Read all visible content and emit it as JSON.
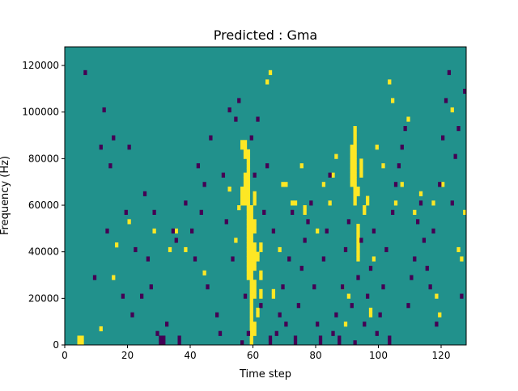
{
  "chart_data": {
    "type": "heatmap",
    "title": "Predicted : Gma",
    "xlabel": "Time step",
    "ylabel": "Frequency (Hz)",
    "xlim": [
      0,
      128
    ],
    "ylim": [
      0,
      128000
    ],
    "x_ticks": [
      0,
      20,
      40,
      60,
      80,
      100,
      120
    ],
    "x_tick_labels": [
      "0",
      "20",
      "40",
      "60",
      "80",
      "100",
      "120"
    ],
    "y_ticks": [
      0,
      20000,
      40000,
      60000,
      80000,
      100000,
      120000
    ],
    "y_tick_labels": [
      "0",
      "20000",
      "40000",
      "60000",
      "80000",
      "100000",
      "120000"
    ],
    "n_time_steps": 128,
    "n_freq_bins": 64,
    "freq_bin_hz": 2000,
    "colormap": {
      "low": "#440154",
      "mid": "#21918c",
      "high": "#fde725"
    },
    "background_value": "mid",
    "high_cells": [
      [
        5,
        0
      ],
      [
        5,
        1
      ],
      [
        4,
        0
      ],
      [
        4,
        1
      ],
      [
        11,
        3
      ],
      [
        15,
        14
      ],
      [
        16,
        21
      ],
      [
        20,
        26
      ],
      [
        28,
        24
      ],
      [
        33,
        20
      ],
      [
        35,
        24
      ],
      [
        38,
        20
      ],
      [
        44,
        15
      ],
      [
        52,
        33
      ],
      [
        54,
        22
      ],
      [
        55,
        29
      ],
      [
        56,
        30
      ],
      [
        56,
        31
      ],
      [
        56,
        32
      ],
      [
        56,
        33
      ],
      [
        56,
        42
      ],
      [
        56,
        43
      ],
      [
        57,
        30
      ],
      [
        57,
        31
      ],
      [
        57,
        32
      ],
      [
        57,
        33
      ],
      [
        57,
        34
      ],
      [
        57,
        35
      ],
      [
        57,
        36
      ],
      [
        57,
        40
      ],
      [
        57,
        41
      ],
      [
        57,
        42
      ],
      [
        57,
        43
      ],
      [
        58,
        14
      ],
      [
        58,
        15
      ],
      [
        58,
        16
      ],
      [
        58,
        17
      ],
      [
        58,
        18
      ],
      [
        58,
        19
      ],
      [
        58,
        20
      ],
      [
        58,
        21
      ],
      [
        58,
        22
      ],
      [
        58,
        23
      ],
      [
        58,
        24
      ],
      [
        58,
        25
      ],
      [
        58,
        26
      ],
      [
        58,
        27
      ],
      [
        58,
        28
      ],
      [
        58,
        29
      ],
      [
        58,
        30
      ],
      [
        58,
        31
      ],
      [
        58,
        32
      ],
      [
        58,
        33
      ],
      [
        58,
        34
      ],
      [
        58,
        35
      ],
      [
        58,
        36
      ],
      [
        58,
        37
      ],
      [
        58,
        38
      ],
      [
        58,
        39
      ],
      [
        58,
        40
      ],
      [
        58,
        41
      ],
      [
        59,
        0
      ],
      [
        59,
        1
      ],
      [
        59,
        2
      ],
      [
        59,
        3
      ],
      [
        59,
        4
      ],
      [
        59,
        5
      ],
      [
        59,
        6
      ],
      [
        59,
        7
      ],
      [
        59,
        8
      ],
      [
        59,
        9
      ],
      [
        59,
        10
      ],
      [
        59,
        11
      ],
      [
        59,
        12
      ],
      [
        59,
        13
      ],
      [
        59,
        14
      ],
      [
        59,
        15
      ],
      [
        59,
        16
      ],
      [
        59,
        17
      ],
      [
        59,
        18
      ],
      [
        59,
        19
      ],
      [
        59,
        20
      ],
      [
        59,
        21
      ],
      [
        59,
        22
      ],
      [
        59,
        23
      ],
      [
        59,
        24
      ],
      [
        59,
        25
      ],
      [
        59,
        26
      ],
      [
        59,
        27
      ],
      [
        59,
        28
      ],
      [
        59,
        29
      ],
      [
        60,
        2
      ],
      [
        60,
        3
      ],
      [
        60,
        4
      ],
      [
        60,
        10
      ],
      [
        60,
        11
      ],
      [
        60,
        12
      ],
      [
        60,
        13
      ],
      [
        60,
        16
      ],
      [
        60,
        17
      ],
      [
        60,
        18
      ],
      [
        60,
        19
      ],
      [
        60,
        20
      ],
      [
        60,
        21
      ],
      [
        60,
        24
      ],
      [
        60,
        25
      ],
      [
        60,
        26
      ],
      [
        60,
        30
      ],
      [
        60,
        31
      ],
      [
        60,
        32
      ],
      [
        61,
        6
      ],
      [
        61,
        7
      ],
      [
        61,
        18
      ],
      [
        61,
        19
      ],
      [
        62,
        10
      ],
      [
        62,
        11
      ],
      [
        62,
        14
      ],
      [
        62,
        15
      ],
      [
        62,
        20
      ],
      [
        62,
        21
      ],
      [
        64,
        56
      ],
      [
        65,
        58
      ],
      [
        66,
        10
      ],
      [
        66,
        11
      ],
      [
        68,
        20
      ],
      [
        69,
        34
      ],
      [
        70,
        34
      ],
      [
        72,
        30
      ],
      [
        73,
        30
      ],
      [
        75,
        38
      ],
      [
        76,
        28
      ],
      [
        76,
        29
      ],
      [
        80,
        24
      ],
      [
        82,
        34
      ],
      [
        84,
        30
      ],
      [
        85,
        36
      ],
      [
        86,
        40
      ],
      [
        88,
        12
      ],
      [
        89,
        4
      ],
      [
        90,
        10
      ],
      [
        91,
        34
      ],
      [
        91,
        35
      ],
      [
        91,
        36
      ],
      [
        91,
        37
      ],
      [
        91,
        38
      ],
      [
        91,
        39
      ],
      [
        91,
        40
      ],
      [
        91,
        41
      ],
      [
        91,
        42
      ],
      [
        92,
        30
      ],
      [
        92,
        31
      ],
      [
        92,
        32
      ],
      [
        92,
        33
      ],
      [
        92,
        34
      ],
      [
        92,
        35
      ],
      [
        92,
        36
      ],
      [
        92,
        37
      ],
      [
        92,
        38
      ],
      [
        92,
        39
      ],
      [
        92,
        40
      ],
      [
        92,
        41
      ],
      [
        92,
        42
      ],
      [
        92,
        43
      ],
      [
        92,
        44
      ],
      [
        92,
        45
      ],
      [
        92,
        46
      ],
      [
        93,
        18
      ],
      [
        93,
        19
      ],
      [
        93,
        20
      ],
      [
        93,
        21
      ],
      [
        93,
        22
      ],
      [
        93,
        23
      ],
      [
        93,
        24
      ],
      [
        93,
        25
      ],
      [
        93,
        32
      ],
      [
        93,
        33
      ],
      [
        94,
        36
      ],
      [
        94,
        37
      ],
      [
        94,
        38
      ],
      [
        94,
        39
      ],
      [
        95,
        28
      ],
      [
        95,
        29
      ],
      [
        96,
        30
      ],
      [
        96,
        31
      ],
      [
        97,
        6
      ],
      [
        97,
        7
      ],
      [
        98,
        18
      ],
      [
        99,
        42
      ],
      [
        101,
        38
      ],
      [
        103,
        56
      ],
      [
        104,
        52
      ],
      [
        105,
        30
      ],
      [
        107,
        34
      ],
      [
        109,
        48
      ],
      [
        111,
        28
      ],
      [
        113,
        32
      ],
      [
        117,
        30
      ],
      [
        118,
        10
      ],
      [
        119,
        6
      ],
      [
        120,
        34
      ],
      [
        123,
        50
      ],
      [
        125,
        20
      ],
      [
        126,
        18
      ],
      [
        127,
        28
      ]
    ],
    "low_cells": [
      [
        6,
        58
      ],
      [
        9,
        14
      ],
      [
        11,
        42
      ],
      [
        12,
        50
      ],
      [
        13,
        24
      ],
      [
        14,
        38
      ],
      [
        15,
        44
      ],
      [
        18,
        10
      ],
      [
        19,
        28
      ],
      [
        20,
        42
      ],
      [
        21,
        6
      ],
      [
        22,
        20
      ],
      [
        24,
        10
      ],
      [
        25,
        32
      ],
      [
        26,
        18
      ],
      [
        27,
        12
      ],
      [
        28,
        28
      ],
      [
        29,
        2
      ],
      [
        30,
        0
      ],
      [
        30,
        1
      ],
      [
        31,
        0
      ],
      [
        31,
        1
      ],
      [
        32,
        4
      ],
      [
        34,
        24
      ],
      [
        35,
        22
      ],
      [
        36,
        0
      ],
      [
        36,
        1
      ],
      [
        38,
        30
      ],
      [
        40,
        24
      ],
      [
        41,
        18
      ],
      [
        42,
        38
      ],
      [
        43,
        28
      ],
      [
        44,
        34
      ],
      [
        45,
        12
      ],
      [
        46,
        44
      ],
      [
        48,
        6
      ],
      [
        49,
        2
      ],
      [
        50,
        36
      ],
      [
        51,
        26
      ],
      [
        52,
        50
      ],
      [
        53,
        18
      ],
      [
        54,
        48
      ],
      [
        55,
        52
      ],
      [
        56,
        0
      ],
      [
        57,
        10
      ],
      [
        58,
        2
      ],
      [
        59,
        44
      ],
      [
        60,
        36
      ],
      [
        61,
        48
      ],
      [
        62,
        8
      ],
      [
        63,
        28
      ],
      [
        64,
        38
      ],
      [
        65,
        0
      ],
      [
        65,
        1
      ],
      [
        66,
        24
      ],
      [
        67,
        2
      ],
      [
        68,
        6
      ],
      [
        69,
        12
      ],
      [
        70,
        4
      ],
      [
        71,
        18
      ],
      [
        72,
        28
      ],
      [
        73,
        0
      ],
      [
        73,
        1
      ],
      [
        74,
        8
      ],
      [
        75,
        16
      ],
      [
        76,
        22
      ],
      [
        77,
        26
      ],
      [
        78,
        30
      ],
      [
        79,
        12
      ],
      [
        80,
        4
      ],
      [
        81,
        0
      ],
      [
        81,
        1
      ],
      [
        82,
        18
      ],
      [
        83,
        24
      ],
      [
        84,
        36
      ],
      [
        85,
        2
      ],
      [
        86,
        6
      ],
      [
        87,
        0
      ],
      [
        87,
        1
      ],
      [
        88,
        12
      ],
      [
        89,
        20
      ],
      [
        90,
        26
      ],
      [
        91,
        8
      ],
      [
        92,
        0
      ],
      [
        93,
        14
      ],
      [
        94,
        22
      ],
      [
        95,
        4
      ],
      [
        96,
        10
      ],
      [
        97,
        16
      ],
      [
        98,
        24
      ],
      [
        99,
        2
      ],
      [
        100,
        6
      ],
      [
        101,
        12
      ],
      [
        102,
        20
      ],
      [
        103,
        0
      ],
      [
        103,
        1
      ],
      [
        104,
        28
      ],
      [
        105,
        34
      ],
      [
        106,
        38
      ],
      [
        107,
        42
      ],
      [
        108,
        46
      ],
      [
        109,
        8
      ],
      [
        110,
        14
      ],
      [
        111,
        18
      ],
      [
        112,
        26
      ],
      [
        113,
        30
      ],
      [
        114,
        22
      ],
      [
        115,
        16
      ],
      [
        116,
        12
      ],
      [
        117,
        24
      ],
      [
        118,
        4
      ],
      [
        119,
        34
      ],
      [
        120,
        44
      ],
      [
        121,
        52
      ],
      [
        122,
        58
      ],
      [
        123,
        30
      ],
      [
        124,
        40
      ],
      [
        125,
        46
      ],
      [
        126,
        10
      ],
      [
        127,
        54
      ]
    ]
  }
}
